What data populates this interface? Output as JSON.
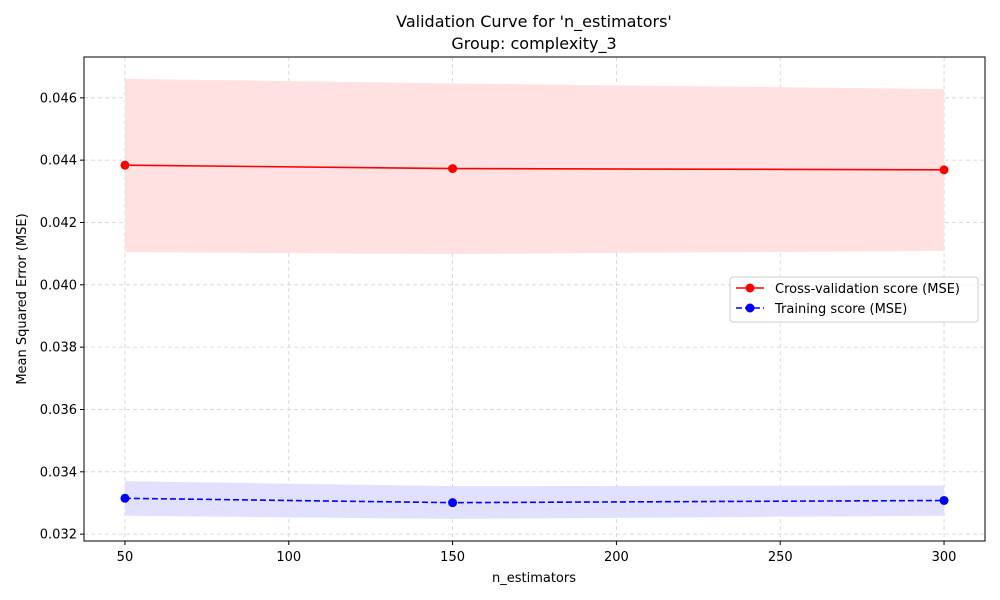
{
  "chart_data": {
    "type": "line",
    "title": "Validation Curve for 'n_estimators'",
    "subtitle": "Group: complexity_3",
    "xlabel": "n_estimators",
    "ylabel": "Mean Squared Error (MSE)",
    "x": [
      50,
      150,
      300
    ],
    "xlim": [
      37.5,
      312.5
    ],
    "ylim": [
      0.03178,
      0.04731
    ],
    "xticks": [
      50,
      100,
      150,
      200,
      250,
      300
    ],
    "yticks": [
      0.032,
      0.034,
      0.036,
      0.038,
      0.04,
      0.042,
      0.044,
      0.046
    ],
    "grid": true,
    "legend_position": "center-right",
    "series": [
      {
        "name": "Cross-validation score (MSE)",
        "color": "#ff0000",
        "band_color": "#ffe1e1",
        "line_style": "solid",
        "marker": "circle",
        "values": [
          0.04384,
          0.04373,
          0.04369
        ],
        "lower": [
          0.04105,
          0.04099,
          0.04109
        ],
        "upper": [
          0.04661,
          0.04646,
          0.04628
        ]
      },
      {
        "name": "Training score (MSE)",
        "color": "#0000ff",
        "band_color": "#e1e1ff",
        "line_style": "dashed",
        "marker": "circle",
        "values": [
          0.03315,
          0.03301,
          0.03308
        ],
        "lower": [
          0.03259,
          0.03249,
          0.03259
        ],
        "upper": [
          0.0337,
          0.03354,
          0.03356
        ]
      }
    ]
  }
}
